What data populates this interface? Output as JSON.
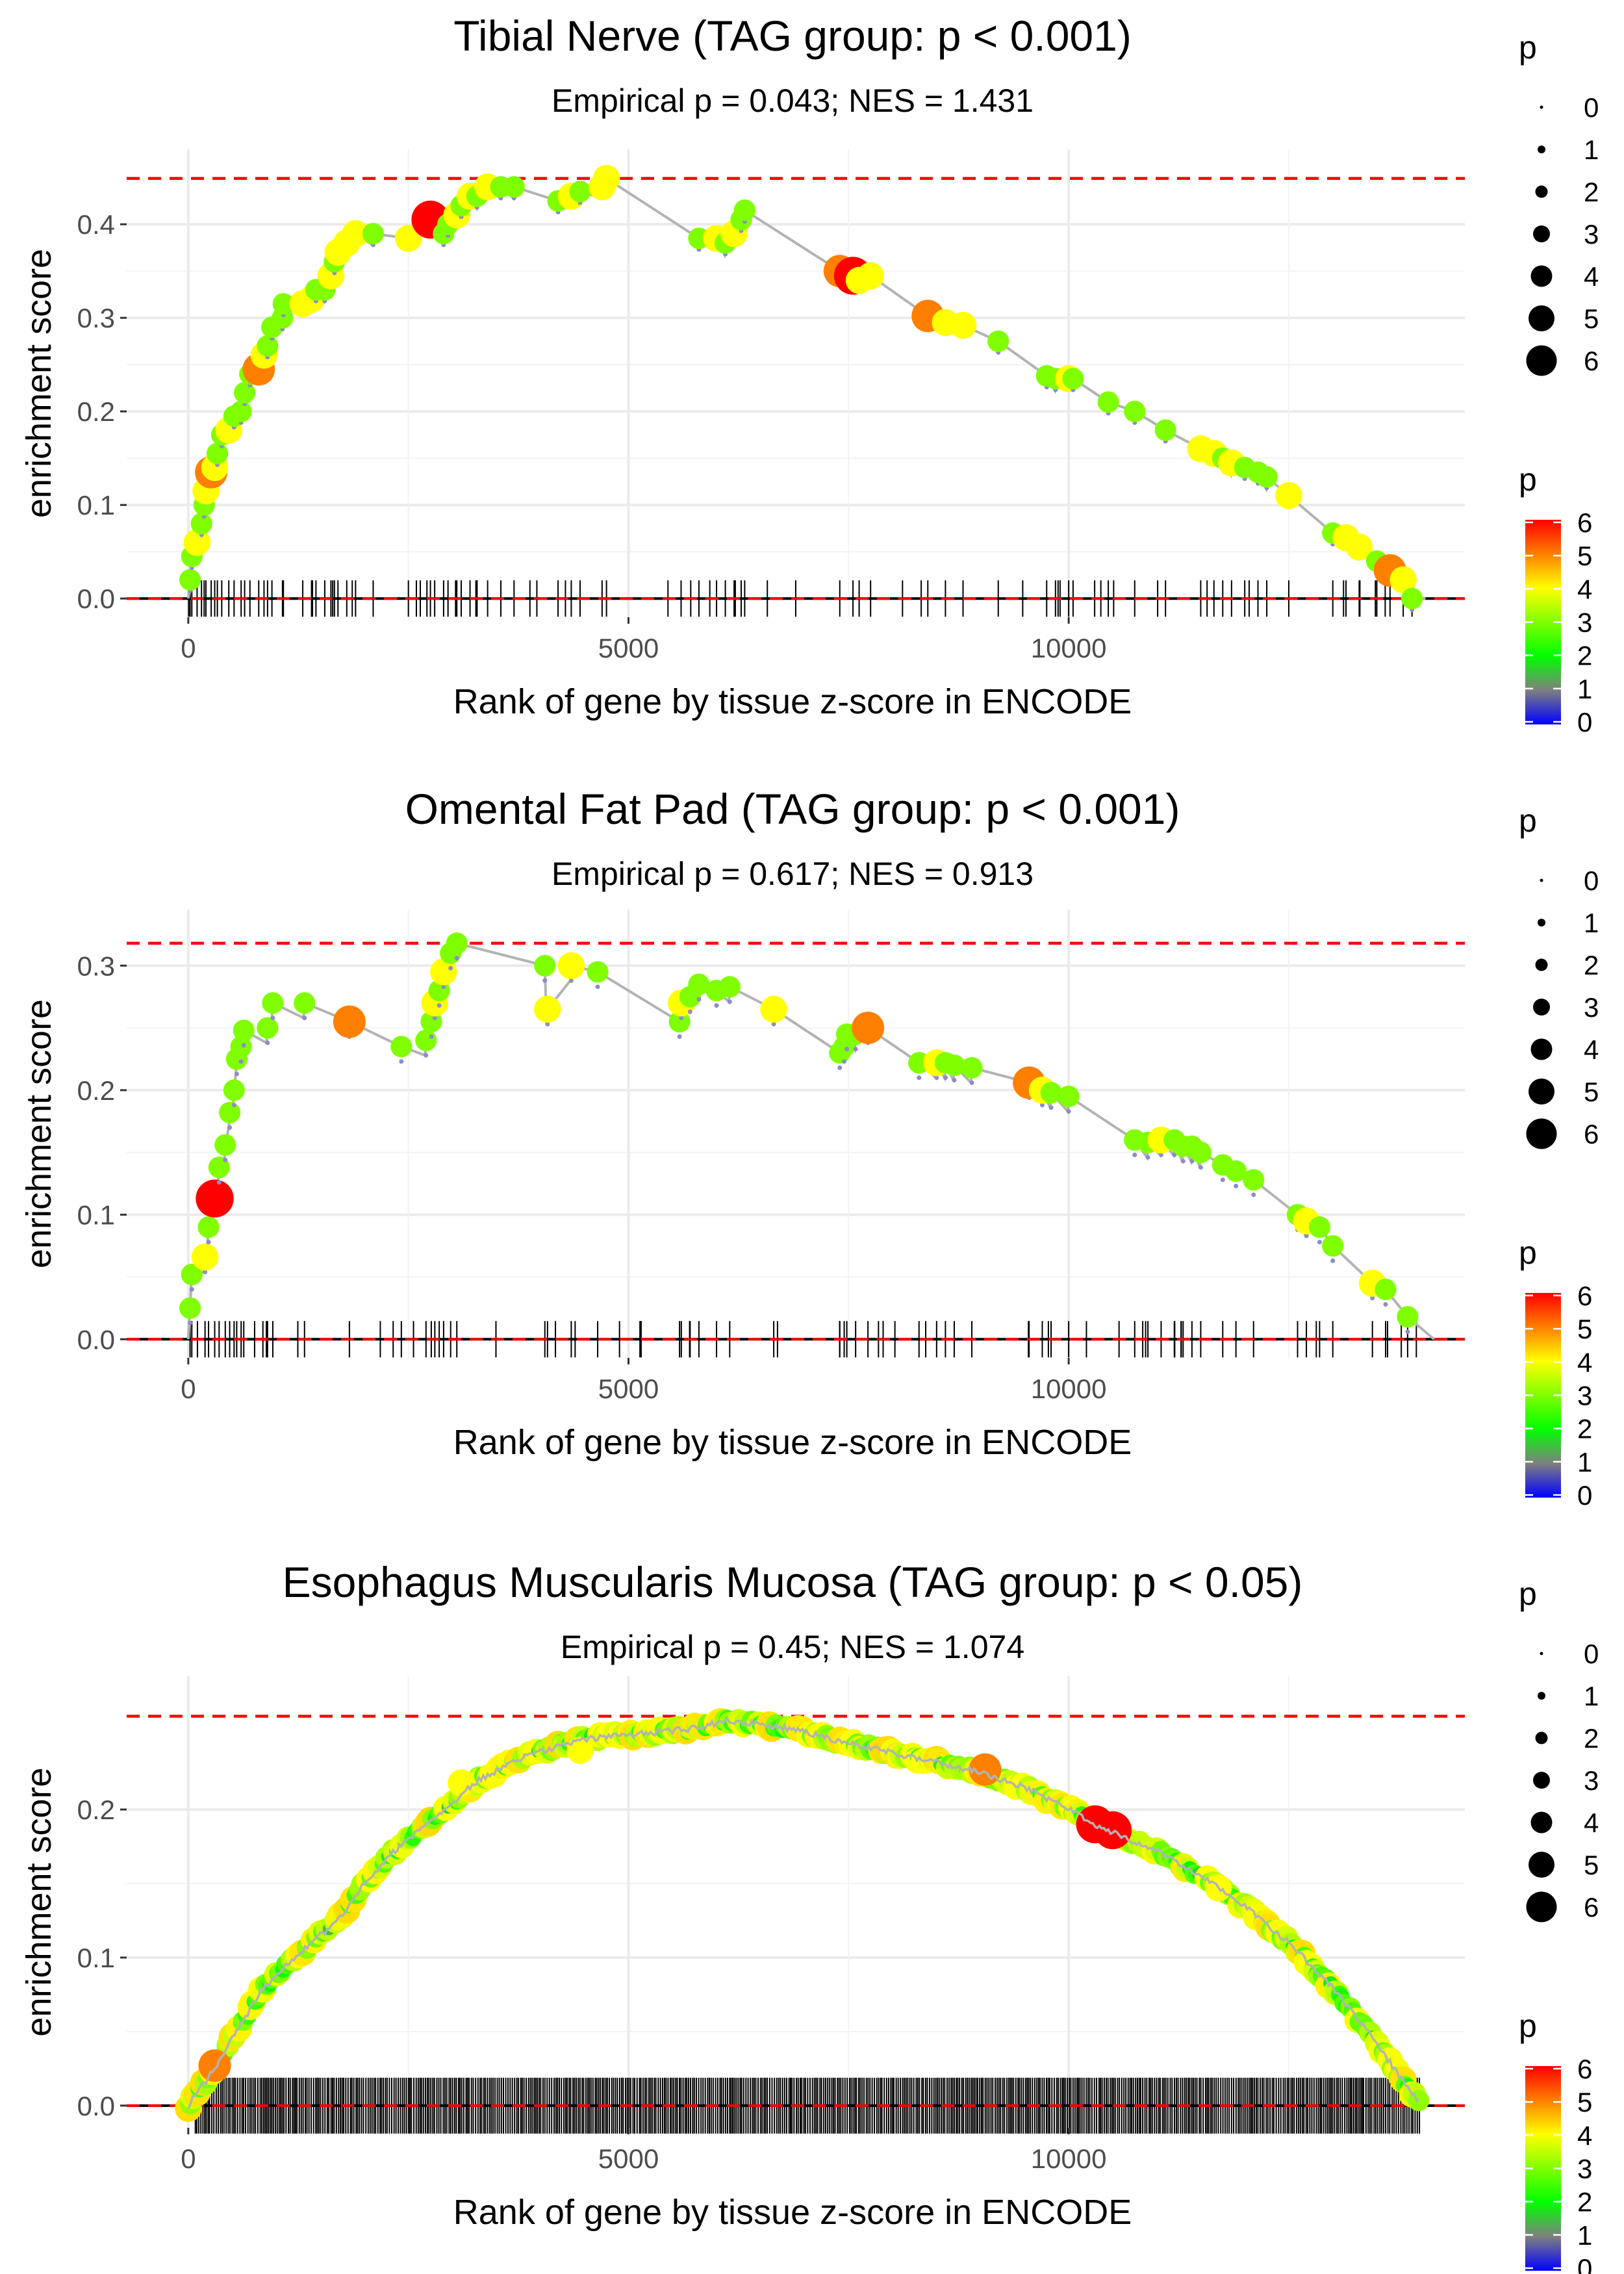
{
  "chart_data": [
    {
      "type": "line",
      "title": "Tibial Nerve (TAG group: p < 0.001)",
      "subtitle": "Empirical p = 0.043; NES = 1.431",
      "xlabel": "Rank of gene by tissue z-score in ENCODE",
      "ylabel": "enrichment score",
      "xlim": [
        -700,
        14500
      ],
      "ylim": [
        -0.02,
        0.48
      ],
      "x_ticks": [
        0,
        5000,
        10000
      ],
      "x_tick_labels": [
        "0",
        "5000",
        "10000"
      ],
      "y_ticks": [
        0.0,
        0.1,
        0.2,
        0.3,
        0.4
      ],
      "y_tick_labels": [
        "0.0",
        "0.1",
        "0.2",
        "0.3",
        "0.4"
      ],
      "max_es": 0.449,
      "x_end": 13900,
      "points": [
        [
          20,
          0.02,
          3
        ],
        [
          40,
          0.045,
          3
        ],
        [
          100,
          0.06,
          4
        ],
        [
          150,
          0.08,
          3
        ],
        [
          180,
          0.1,
          3
        ],
        [
          200,
          0.115,
          4
        ],
        [
          260,
          0.135,
          5
        ],
        [
          300,
          0.14,
          4
        ],
        [
          330,
          0.155,
          3
        ],
        [
          380,
          0.175,
          3
        ],
        [
          460,
          0.18,
          4
        ],
        [
          520,
          0.195,
          3
        ],
        [
          600,
          0.2,
          3
        ],
        [
          640,
          0.22,
          3
        ],
        [
          700,
          0.24,
          3
        ],
        [
          800,
          0.245,
          5
        ],
        [
          860,
          0.26,
          4
        ],
        [
          900,
          0.27,
          3
        ],
        [
          950,
          0.29,
          3
        ],
        [
          1070,
          0.3,
          3
        ],
        [
          1080,
          0.315,
          3
        ],
        [
          1300,
          0.315,
          4
        ],
        [
          1400,
          0.32,
          4
        ],
        [
          1450,
          0.33,
          3
        ],
        [
          1550,
          0.33,
          3
        ],
        [
          1620,
          0.345,
          4
        ],
        [
          1660,
          0.36,
          3
        ],
        [
          1700,
          0.37,
          4
        ],
        [
          1800,
          0.38,
          4
        ],
        [
          1900,
          0.39,
          4
        ],
        [
          2100,
          0.39,
          3
        ],
        [
          2500,
          0.385,
          4
        ],
        [
          2750,
          0.405,
          6
        ],
        [
          2900,
          0.39,
          3
        ],
        [
          2950,
          0.4,
          3
        ],
        [
          3050,
          0.41,
          4
        ],
        [
          3100,
          0.42,
          3
        ],
        [
          3200,
          0.43,
          4
        ],
        [
          3280,
          0.43,
          3
        ],
        [
          3400,
          0.44,
          4
        ],
        [
          3550,
          0.44,
          3
        ],
        [
          3700,
          0.44,
          3
        ],
        [
          4200,
          0.425,
          3
        ],
        [
          4350,
          0.43,
          4
        ],
        [
          4450,
          0.435,
          3
        ],
        [
          4700,
          0.44,
          4
        ],
        [
          4750,
          0.449,
          4
        ],
        [
          5800,
          0.385,
          3
        ],
        [
          6000,
          0.385,
          4
        ],
        [
          6100,
          0.38,
          3
        ],
        [
          6200,
          0.39,
          4
        ],
        [
          6280,
          0.405,
          3
        ],
        [
          6320,
          0.415,
          3
        ],
        [
          7400,
          0.35,
          5
        ],
        [
          7550,
          0.345,
          6
        ],
        [
          7620,
          0.34,
          4
        ],
        [
          7750,
          0.345,
          4
        ],
        [
          8400,
          0.302,
          5
        ],
        [
          8600,
          0.295,
          4
        ],
        [
          8800,
          0.292,
          4
        ],
        [
          9200,
          0.275,
          3
        ],
        [
          9750,
          0.238,
          3
        ],
        [
          9850,
          0.235,
          3
        ],
        [
          10000,
          0.235,
          4
        ],
        [
          10050,
          0.235,
          3
        ],
        [
          10450,
          0.21,
          3
        ],
        [
          10750,
          0.2,
          3
        ],
        [
          11100,
          0.18,
          3
        ],
        [
          11500,
          0.16,
          4
        ],
        [
          11650,
          0.155,
          4
        ],
        [
          11750,
          0.15,
          3
        ],
        [
          11850,
          0.145,
          4
        ],
        [
          12000,
          0.14,
          3
        ],
        [
          12150,
          0.135,
          3
        ],
        [
          12250,
          0.13,
          3
        ],
        [
          12500,
          0.11,
          4
        ],
        [
          13000,
          0.07,
          3
        ],
        [
          13150,
          0.065,
          4
        ],
        [
          13300,
          0.055,
          4
        ],
        [
          13500,
          0.04,
          3
        ],
        [
          13650,
          0.03,
          5
        ],
        [
          13800,
          0.02,
          4
        ],
        [
          13900,
          0.0,
          3
        ]
      ]
    },
    {
      "type": "line",
      "title": "Omental Fat Pad (TAG group: p < 0.001)",
      "subtitle": "Empirical p = 0.617; NES = 0.913",
      "xlabel": "Rank of gene by tissue z-score in ENCODE",
      "ylabel": "enrichment score",
      "xlim": [
        -700,
        14500
      ],
      "ylim": [
        -0.015,
        0.345
      ],
      "x_ticks": [
        0,
        5000,
        10000
      ],
      "x_tick_labels": [
        "0",
        "5000",
        "10000"
      ],
      "y_ticks": [
        0.0,
        0.1,
        0.2,
        0.3
      ],
      "y_tick_labels": [
        "0.0",
        "0.1",
        "0.2",
        "0.3"
      ],
      "max_es": 0.318,
      "x_end": 14000,
      "points": [
        [
          20,
          0.025,
          3
        ],
        [
          40,
          0.052,
          3
        ],
        [
          190,
          0.066,
          4
        ],
        [
          230,
          0.09,
          3
        ],
        [
          300,
          0.113,
          6
        ],
        [
          350,
          0.138,
          3
        ],
        [
          420,
          0.156,
          3
        ],
        [
          470,
          0.182,
          3
        ],
        [
          520,
          0.2,
          3
        ],
        [
          550,
          0.225,
          3
        ],
        [
          600,
          0.235,
          3
        ],
        [
          630,
          0.248,
          3
        ],
        [
          900,
          0.25,
          3
        ],
        [
          960,
          0.27,
          3
        ],
        [
          1320,
          0.27,
          3
        ],
        [
          1830,
          0.255,
          5
        ],
        [
          2420,
          0.235,
          3
        ],
        [
          2700,
          0.24,
          3
        ],
        [
          2760,
          0.255,
          3
        ],
        [
          2800,
          0.27,
          4
        ],
        [
          2850,
          0.28,
          3
        ],
        [
          2900,
          0.295,
          4
        ],
        [
          2980,
          0.31,
          3
        ],
        [
          3050,
          0.318,
          3
        ],
        [
          4050,
          0.3,
          3
        ],
        [
          4080,
          0.265,
          4
        ],
        [
          4350,
          0.3,
          4
        ],
        [
          4650,
          0.295,
          3
        ],
        [
          5580,
          0.255,
          3
        ],
        [
          5600,
          0.27,
          4
        ],
        [
          5700,
          0.275,
          3
        ],
        [
          5800,
          0.285,
          3
        ],
        [
          6000,
          0.28,
          3
        ],
        [
          6150,
          0.283,
          3
        ],
        [
          6650,
          0.265,
          4
        ],
        [
          7400,
          0.23,
          3
        ],
        [
          7450,
          0.235,
          3
        ],
        [
          7480,
          0.245,
          3
        ],
        [
          7580,
          0.245,
          3
        ],
        [
          7720,
          0.25,
          5
        ],
        [
          8300,
          0.222,
          3
        ],
        [
          8500,
          0.222,
          4
        ],
        [
          8600,
          0.222,
          3
        ],
        [
          8700,
          0.22,
          3
        ],
        [
          8900,
          0.218,
          3
        ],
        [
          9550,
          0.206,
          5
        ],
        [
          9700,
          0.2,
          4
        ],
        [
          9800,
          0.198,
          3
        ],
        [
          10000,
          0.195,
          3
        ],
        [
          10750,
          0.16,
          3
        ],
        [
          10900,
          0.158,
          3
        ],
        [
          11050,
          0.16,
          4
        ],
        [
          11200,
          0.16,
          3
        ],
        [
          11300,
          0.155,
          3
        ],
        [
          11400,
          0.155,
          3
        ],
        [
          11500,
          0.15,
          3
        ],
        [
          11750,
          0.14,
          3
        ],
        [
          11900,
          0.135,
          3
        ],
        [
          12100,
          0.128,
          3
        ],
        [
          12600,
          0.1,
          3
        ],
        [
          12700,
          0.095,
          4
        ],
        [
          12850,
          0.09,
          3
        ],
        [
          13000,
          0.075,
          3
        ],
        [
          13450,
          0.045,
          4
        ],
        [
          13600,
          0.04,
          3
        ],
        [
          13850,
          0.018,
          3
        ]
      ]
    },
    {
      "type": "line",
      "title": "Esophagus Muscularis Mucosa (TAG group: p < 0.05)",
      "subtitle": "Empirical p = 0.45; NES = 1.074",
      "xlabel": "Rank of gene by tissue z-score in ENCODE",
      "ylabel": "enrichment score",
      "xlim": [
        -700,
        14500
      ],
      "ylim": [
        -0.015,
        0.29
      ],
      "x_ticks": [
        0,
        5000,
        10000
      ],
      "x_tick_labels": [
        "0",
        "5000",
        "10000"
      ],
      "y_ticks": [
        0.0,
        0.1,
        0.2
      ],
      "y_tick_labels": [
        "0.0",
        "0.1",
        "0.2"
      ],
      "max_es": 0.263,
      "x_end": 14000,
      "curve": [
        [
          0,
          0.0
        ],
        [
          300,
          0.025
        ],
        [
          500,
          0.045
        ],
        [
          800,
          0.075
        ],
        [
          1100,
          0.095
        ],
        [
          1400,
          0.11
        ],
        [
          1700,
          0.125
        ],
        [
          2000,
          0.15
        ],
        [
          2300,
          0.17
        ],
        [
          2600,
          0.185
        ],
        [
          3000,
          0.205
        ],
        [
          3300,
          0.22
        ],
        [
          3800,
          0.235
        ],
        [
          4300,
          0.245
        ],
        [
          4800,
          0.25
        ],
        [
          5300,
          0.252
        ],
        [
          5800,
          0.255
        ],
        [
          6100,
          0.26
        ],
        [
          6500,
          0.258
        ],
        [
          7000,
          0.252
        ],
        [
          7500,
          0.245
        ],
        [
          8000,
          0.238
        ],
        [
          8500,
          0.232
        ],
        [
          9000,
          0.225
        ],
        [
          9500,
          0.215
        ],
        [
          10000,
          0.2
        ],
        [
          10300,
          0.19
        ],
        [
          10600,
          0.182
        ],
        [
          11000,
          0.172
        ],
        [
          11500,
          0.155
        ],
        [
          12000,
          0.135
        ],
        [
          12500,
          0.11
        ],
        [
          13000,
          0.08
        ],
        [
          13400,
          0.05
        ],
        [
          13700,
          0.025
        ],
        [
          14000,
          0.0
        ]
      ],
      "highlights": [
        [
          300,
          0.027,
          5
        ],
        [
          3100,
          0.218,
          4
        ],
        [
          9050,
          0.227,
          5
        ],
        [
          10300,
          0.19,
          6
        ],
        [
          10500,
          0.186,
          6
        ],
        [
          4450,
          0.24,
          4
        ],
        [
          11700,
          0.147,
          4
        ]
      ]
    }
  ],
  "size_legend": {
    "title": "p",
    "labels": [
      "0",
      "1",
      "2",
      "3",
      "4",
      "5",
      "6"
    ]
  },
  "color_legend": {
    "title": "p",
    "labels": [
      "6",
      "5",
      "4",
      "3",
      "2",
      "1",
      "0"
    ]
  },
  "colors": {
    "rug": "#000000",
    "max_line": "#ff0000",
    "es_line": "#b3b3b3",
    "grid": "#ebebeb",
    "scale": [
      "#0000ff",
      "#7f7f7f",
      "#00ff00",
      "#ffff00",
      "#ff7f00",
      "#ff0000"
    ]
  }
}
